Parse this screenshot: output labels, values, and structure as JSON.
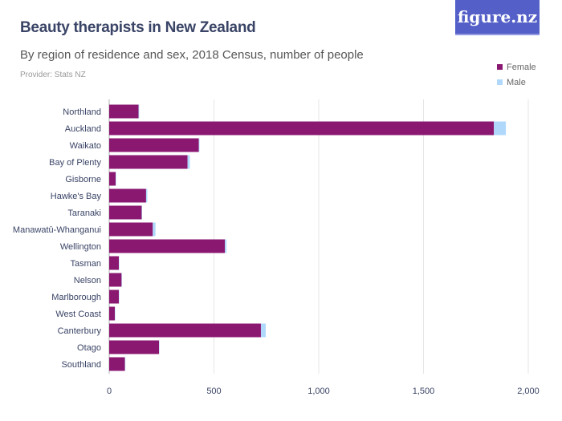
{
  "header": {
    "title": "Beauty therapists in New Zealand",
    "subtitle": "By region of residence and sex, 2018 Census, number of people",
    "provider": "Provider: Stats NZ",
    "logo": "figure.nz"
  },
  "colors": {
    "Female": "#8a1770",
    "Male": "#afd8fb",
    "logo_bg": "#5460c7"
  },
  "chart_data": {
    "type": "bar",
    "orientation": "horizontal",
    "stacked": true,
    "title": "Beauty therapists in New Zealand",
    "subtitle": "By region of residence and sex, 2018 Census, number of people",
    "categories": [
      "Northland",
      "Auckland",
      "Waikato",
      "Bay of Plenty",
      "Gisborne",
      "Hawke's Bay",
      "Taranaki",
      "Manawatū-Whanganui",
      "Wellington",
      "Tasman",
      "Nelson",
      "Marlborough",
      "West Coast",
      "Canterbury",
      "Otago",
      "Southland"
    ],
    "series": [
      {
        "name": "Female",
        "values": [
          140,
          1836,
          428,
          374,
          31,
          176,
          155,
          208,
          552,
          46,
          59,
          46,
          27,
          724,
          238,
          75
        ]
      },
      {
        "name": "Male",
        "values": [
          3,
          57,
          3,
          11,
          1,
          6,
          1,
          13,
          8,
          1,
          1,
          1,
          1,
          23,
          1,
          1
        ]
      }
    ],
    "xlim": [
      0,
      2000
    ],
    "xticks": [
      "0",
      "500",
      "1,000",
      "1,500",
      "2,000"
    ],
    "xtick_values": [
      0,
      500,
      1000,
      1500,
      2000
    ],
    "grid": true,
    "legend": "top-right"
  }
}
